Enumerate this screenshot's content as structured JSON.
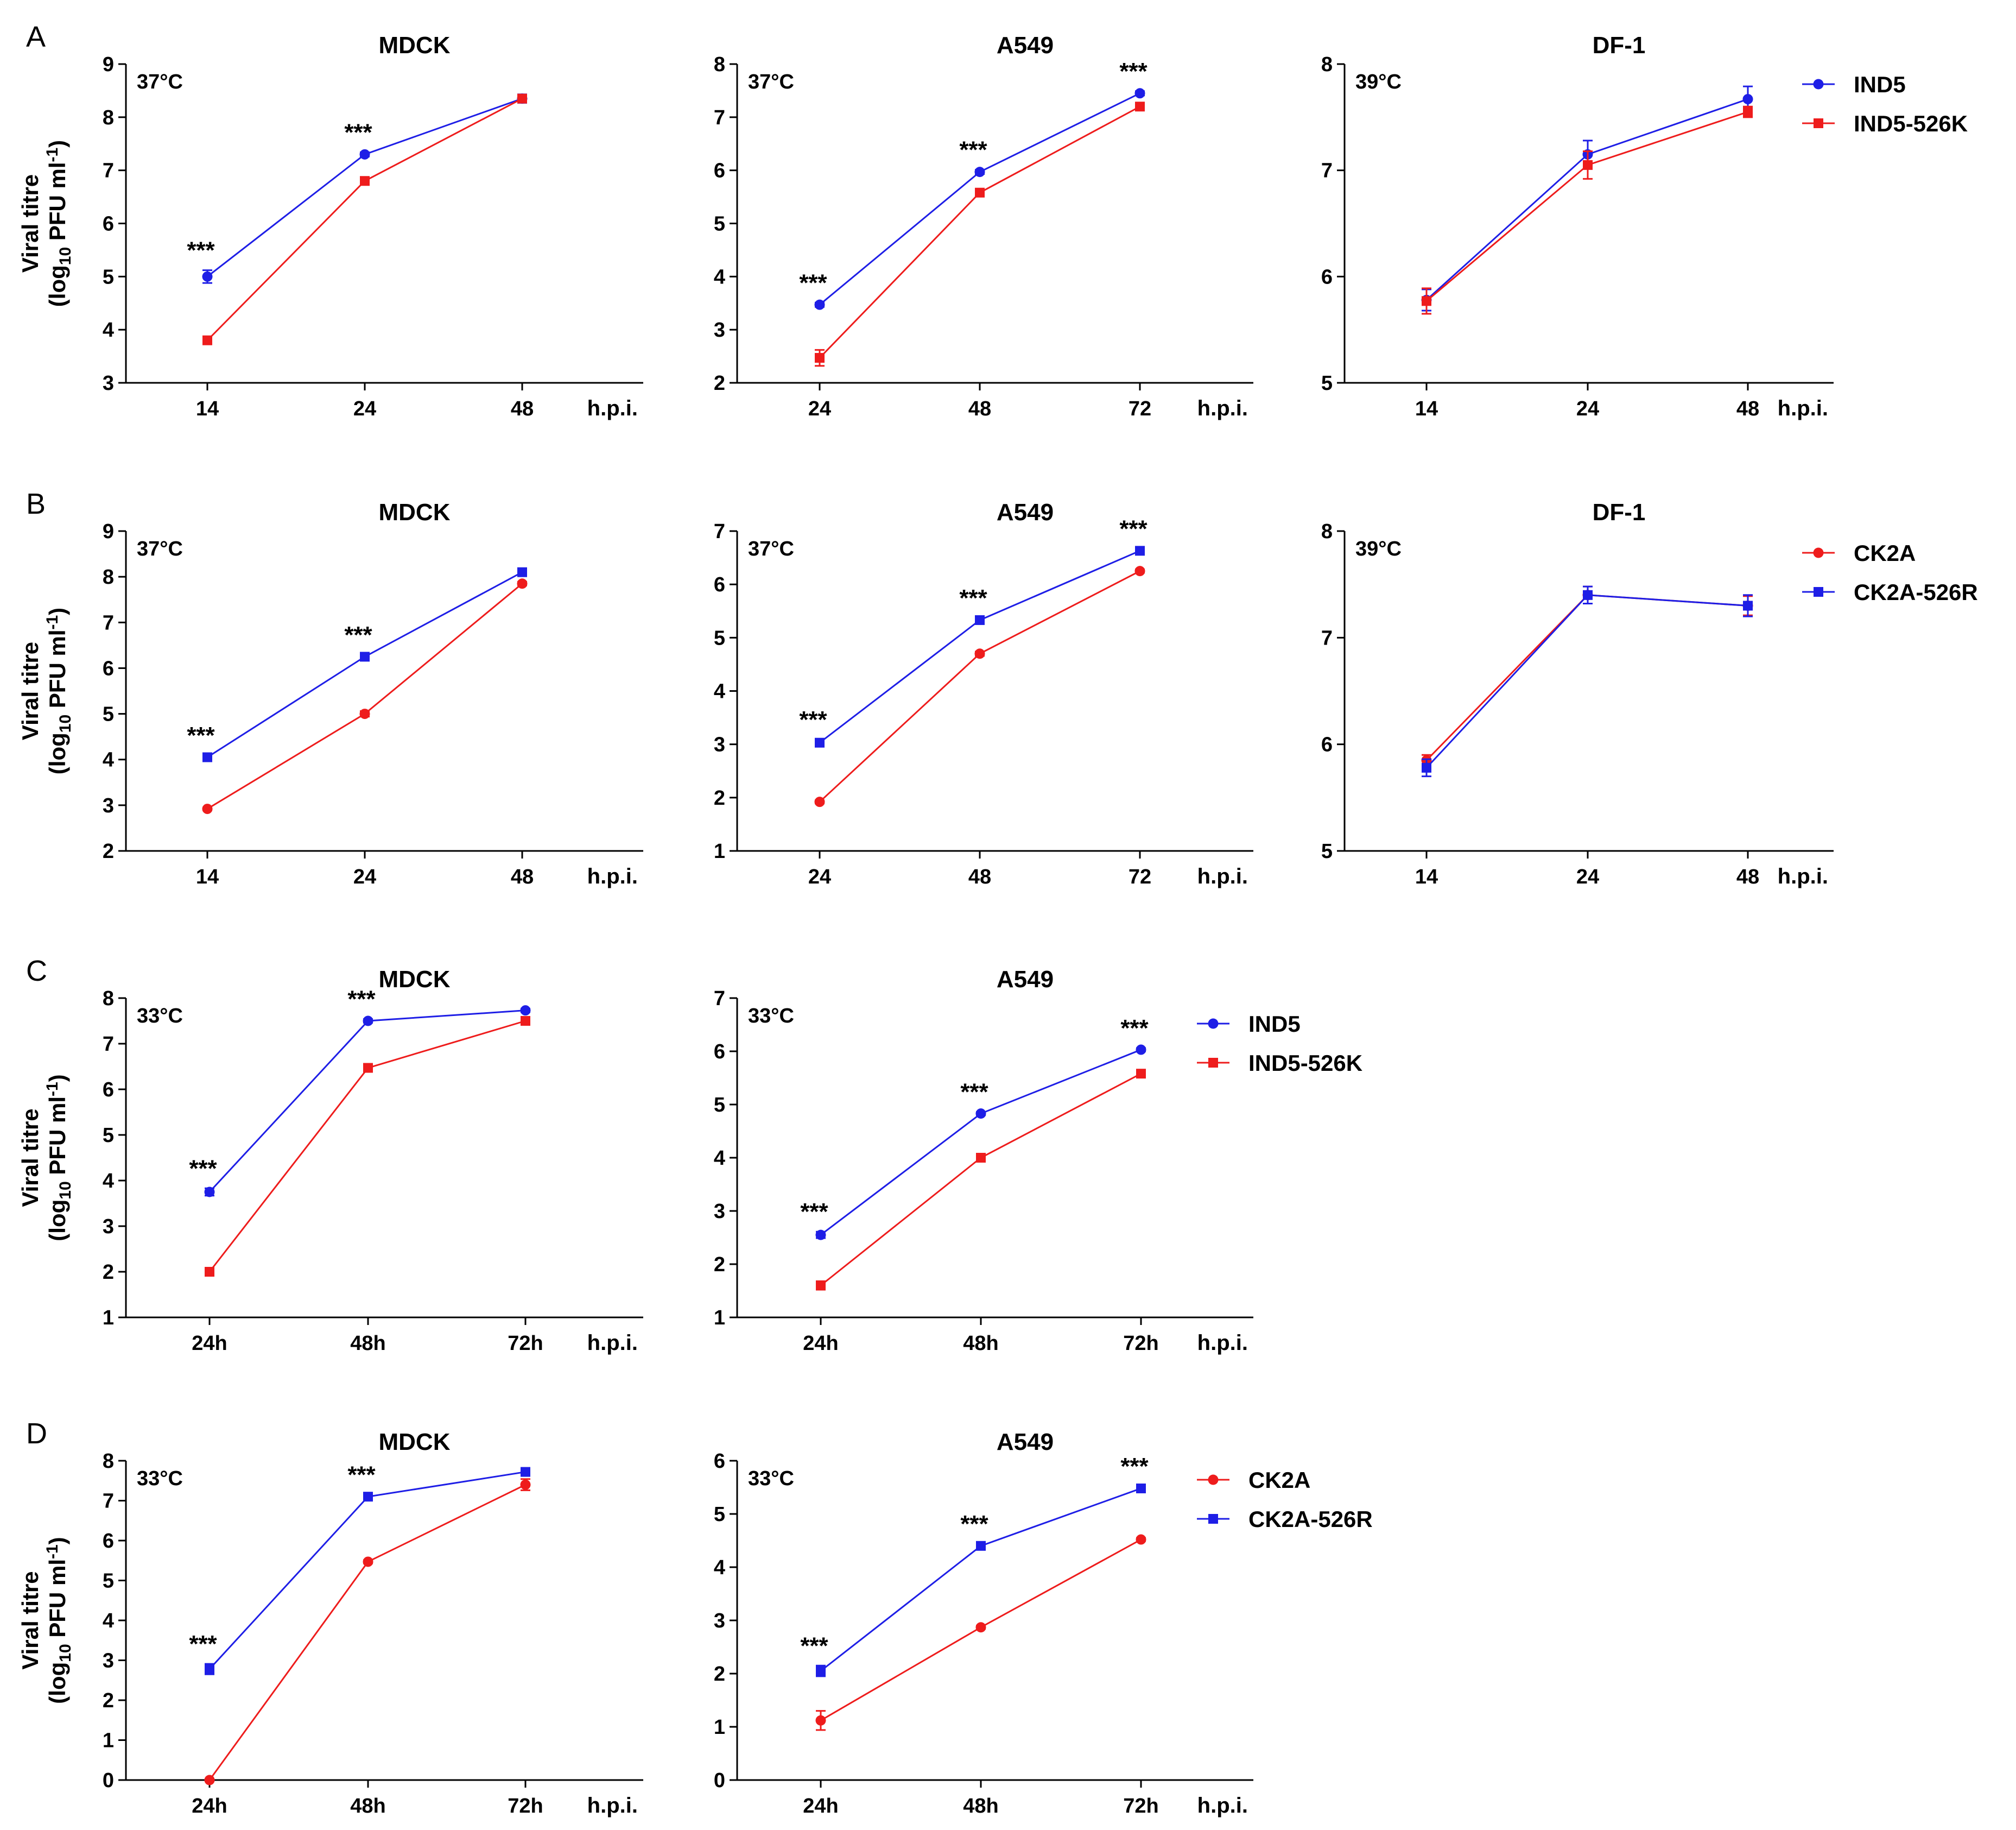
{
  "chart_data": [
    {
      "id": "A1",
      "panel": "A",
      "title": "MDCK",
      "temp": "37°C",
      "categories": [
        "14",
        "24",
        "48"
      ],
      "xunit": "h.p.i.",
      "ylim": [
        3,
        9
      ],
      "ylabel": "Viral titre",
      "ylabel_units": [
        "(log",
        "10",
        " PFU ml",
        "-1",
        ")"
      ],
      "series": [
        {
          "name": "IND5",
          "color": "#1e1ee6",
          "marker": "circle",
          "values": [
            5.0,
            7.3,
            8.35
          ],
          "err": [
            0.12,
            0.04,
            0.08
          ]
        },
        {
          "name": "IND5-526K",
          "color": "#ee1c1c",
          "marker": "square",
          "values": [
            3.8,
            6.8,
            8.35
          ],
          "err": [
            0.05,
            0.04,
            0.05
          ]
        }
      ],
      "stars": [
        "***",
        "***",
        ""
      ]
    },
    {
      "id": "A2",
      "panel": "",
      "title": "A549",
      "temp": "37°C",
      "categories": [
        "24",
        "48",
        "72"
      ],
      "xunit": "h.p.i.",
      "ylim": [
        2,
        8
      ],
      "series": [
        {
          "name": "IND5",
          "color": "#1e1ee6",
          "marker": "circle",
          "values": [
            3.47,
            5.97,
            7.45
          ],
          "err": [
            0.04,
            0.04,
            0.04
          ]
        },
        {
          "name": "IND5-526K",
          "color": "#ee1c1c",
          "marker": "square",
          "values": [
            2.47,
            5.58,
            7.2
          ],
          "err": [
            0.15,
            0.05,
            0.05
          ]
        }
      ],
      "stars": [
        "***",
        "***",
        "***"
      ]
    },
    {
      "id": "A3",
      "panel": "",
      "title": "DF-1",
      "temp": "39°C",
      "categories": [
        "14",
        "24",
        "48"
      ],
      "xunit": "h.p.i.",
      "ylim": [
        5,
        8
      ],
      "series": [
        {
          "name": "IND5",
          "color": "#1e1ee6",
          "marker": "circle",
          "values": [
            5.78,
            7.15,
            7.67
          ],
          "err": [
            0.1,
            0.13,
            0.12
          ]
        },
        {
          "name": "IND5-526K",
          "color": "#ee1c1c",
          "marker": "square",
          "values": [
            5.77,
            7.05,
            7.55
          ],
          "err": [
            0.12,
            0.13,
            0.05
          ]
        }
      ],
      "stars": [
        "",
        "",
        ""
      ],
      "legend": [
        {
          "name": "IND5",
          "color": "#1e1ee6",
          "marker": "circle"
        },
        {
          "name": "IND5-526K",
          "color": "#ee1c1c",
          "marker": "square"
        }
      ]
    },
    {
      "id": "B1",
      "panel": "B",
      "title": "MDCK",
      "temp": "37°C",
      "categories": [
        "14",
        "24",
        "48"
      ],
      "xunit": "h.p.i.",
      "ylim": [
        2,
        9
      ],
      "ylabel": "Viral titre",
      "ylabel_units": [
        "(log",
        "10",
        " PFU ml",
        "-1",
        ")"
      ],
      "series": [
        {
          "name": "CK2A",
          "color": "#ee1c1c",
          "marker": "circle",
          "values": [
            2.92,
            5.0,
            7.85
          ],
          "err": [
            0.03,
            0.06,
            0.04
          ]
        },
        {
          "name": "CK2A-526R",
          "color": "#1e1ee6",
          "marker": "square",
          "values": [
            4.05,
            6.25,
            8.1
          ],
          "err": [
            0.04,
            0.04,
            0.04
          ]
        }
      ],
      "stars": [
        "***",
        "***",
        ""
      ]
    },
    {
      "id": "B2",
      "panel": "",
      "title": "A549",
      "temp": "37°C",
      "categories": [
        "24",
        "48",
        "72"
      ],
      "xunit": "h.p.i.",
      "ylim": [
        1,
        7
      ],
      "series": [
        {
          "name": "CK2A",
          "color": "#ee1c1c",
          "marker": "circle",
          "values": [
            1.92,
            4.7,
            6.25
          ],
          "err": [
            0.03,
            0.04,
            0.03
          ]
        },
        {
          "name": "CK2A-526R",
          "color": "#1e1ee6",
          "marker": "square",
          "values": [
            3.03,
            5.33,
            6.63
          ],
          "err": [
            0.06,
            0.04,
            0.04
          ]
        }
      ],
      "stars": [
        "***",
        "***",
        "***"
      ]
    },
    {
      "id": "B3",
      "panel": "",
      "title": "DF-1",
      "temp": "39°C",
      "categories": [
        "14",
        "24",
        "48"
      ],
      "xunit": "h.p.i.",
      "ylim": [
        5,
        8
      ],
      "series": [
        {
          "name": "CK2A",
          "color": "#ee1c1c",
          "marker": "circle",
          "values": [
            5.85,
            7.4,
            7.3
          ],
          "err": [
            0.05,
            0.08,
            0.09
          ]
        },
        {
          "name": "CK2A-526R",
          "color": "#1e1ee6",
          "marker": "square",
          "values": [
            5.78,
            7.4,
            7.3
          ],
          "err": [
            0.08,
            0.08,
            0.1
          ]
        }
      ],
      "stars": [
        "",
        "",
        ""
      ],
      "legend": [
        {
          "name": "CK2A",
          "color": "#ee1c1c",
          "marker": "circle"
        },
        {
          "name": "CK2A-526R",
          "color": "#1e1ee6",
          "marker": "square"
        }
      ]
    },
    {
      "id": "C1",
      "panel": "C",
      "title": "MDCK",
      "temp": "33°C",
      "categories": [
        "24h",
        "48h",
        "72h"
      ],
      "xunit": "h.p.i.",
      "ylim": [
        1,
        8
      ],
      "ylabel": "Viral titre",
      "ylabel_units": [
        "(log",
        "10",
        " PFU ml",
        "-1",
        ")"
      ],
      "series": [
        {
          "name": "IND5",
          "color": "#1e1ee6",
          "marker": "circle",
          "values": [
            3.75,
            7.5,
            7.73
          ],
          "err": [
            0.08,
            0.04,
            0.04
          ]
        },
        {
          "name": "IND5-526K",
          "color": "#ee1c1c",
          "marker": "square",
          "values": [
            2.0,
            6.47,
            7.5
          ],
          "err": [
            0.03,
            0.05,
            0.06
          ]
        }
      ],
      "stars": [
        "***",
        "***",
        ""
      ]
    },
    {
      "id": "C2",
      "panel": "",
      "title": "A549",
      "temp": "33°C",
      "categories": [
        "24h",
        "48h",
        "72h"
      ],
      "xunit": "h.p.i.",
      "ylim": [
        1,
        7
      ],
      "series": [
        {
          "name": "IND5",
          "color": "#1e1ee6",
          "marker": "circle",
          "values": [
            2.55,
            4.83,
            6.03
          ],
          "err": [
            0.06,
            0.03,
            0.03
          ]
        },
        {
          "name": "IND5-526K",
          "color": "#ee1c1c",
          "marker": "square",
          "values": [
            1.6,
            4.0,
            5.58
          ],
          "err": [
            0.08,
            0.04,
            0.04
          ]
        }
      ],
      "stars": [
        "***",
        "***",
        "***"
      ],
      "legend": [
        {
          "name": "IND5",
          "color": "#1e1ee6",
          "marker": "circle"
        },
        {
          "name": "IND5-526K",
          "color": "#ee1c1c",
          "marker": "square"
        }
      ]
    },
    {
      "id": "D1",
      "panel": "D",
      "title": "MDCK",
      "temp": "33°C",
      "categories": [
        "24h",
        "48h",
        "72h"
      ],
      "xunit": "h.p.i.",
      "ylim": [
        0,
        8
      ],
      "ylabel": "Viral titre",
      "ylabel_units": [
        "(log",
        "10",
        " PFU ml",
        "-1",
        ")"
      ],
      "series": [
        {
          "name": "CK2A",
          "color": "#ee1c1c",
          "marker": "circle",
          "values": [
            0.0,
            5.47,
            7.4
          ],
          "err": [
            0.03,
            0.04,
            0.14
          ]
        },
        {
          "name": "CK2A-526R",
          "color": "#1e1ee6",
          "marker": "square",
          "values": [
            2.78,
            7.1,
            7.72
          ],
          "err": [
            0.13,
            0.05,
            0.04
          ]
        }
      ],
      "stars": [
        "***",
        "***",
        ""
      ]
    },
    {
      "id": "D2",
      "panel": "",
      "title": "A549",
      "temp": "33°C",
      "categories": [
        "24h",
        "48h",
        "72h"
      ],
      "xunit": "h.p.i.",
      "ylim": [
        0,
        6
      ],
      "series": [
        {
          "name": "CK2A",
          "color": "#ee1c1c",
          "marker": "circle",
          "values": [
            1.12,
            2.87,
            4.52
          ],
          "err": [
            0.18,
            0.03,
            0.03
          ]
        },
        {
          "name": "CK2A-526R",
          "color": "#1e1ee6",
          "marker": "square",
          "values": [
            2.05,
            4.4,
            5.48
          ],
          "err": [
            0.1,
            0.04,
            0.04
          ]
        }
      ],
      "stars": [
        "***",
        "***",
        "***"
      ],
      "legend": [
        {
          "name": "CK2A",
          "color": "#ee1c1c",
          "marker": "circle"
        },
        {
          "name": "CK2A-526R",
          "color": "#1e1ee6",
          "marker": "square"
        }
      ]
    }
  ]
}
